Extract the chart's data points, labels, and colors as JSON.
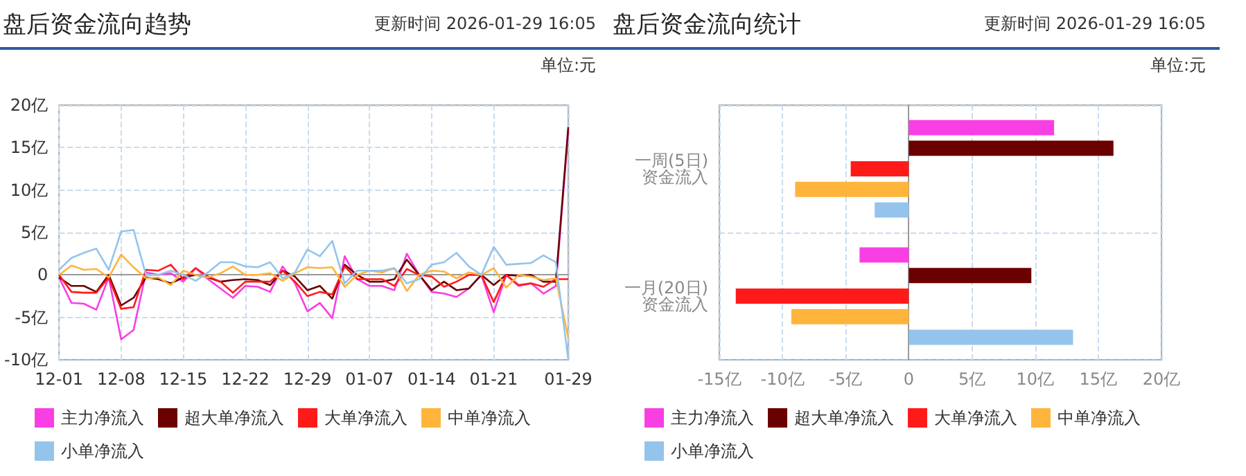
{
  "chart_data": [
    {
      "type": "line",
      "title": "盘后资金流向趋势",
      "subtitle": "更新时间 2026-01-29 16:05",
      "annotations": [
        "单位:元"
      ],
      "categories": [
        "12-01",
        null,
        null,
        null,
        null,
        "12-08",
        null,
        null,
        null,
        null,
        "12-15",
        null,
        null,
        null,
        null,
        "12-22",
        null,
        null,
        null,
        null,
        "12-29",
        null,
        null,
        null,
        null,
        "01-07",
        null,
        null,
        null,
        null,
        "01-14",
        null,
        null,
        null,
        null,
        "01-21",
        null,
        null,
        null,
        null,
        null,
        "01-29"
      ],
      "series": [
        {
          "name": "主力净流入",
          "color": "#f93ee4",
          "values": [
            -0.3,
            -3.3,
            -3.4,
            -4.1,
            -0.3,
            -7.6,
            -6.5,
            0.3,
            0.0,
            0.2,
            -0.8,
            0.8,
            -0.5,
            -1.6,
            -2.7,
            -1.3,
            -1.4,
            -2.0,
            1.0,
            -1.0,
            -4.3,
            -3.3,
            -5.1,
            2.2,
            -0.5,
            -1.3,
            -1.3,
            -1.8,
            2.5,
            0.0,
            -2.0,
            -2.2,
            -2.6,
            -1.6,
            0.0,
            -4.4,
            0.0,
            -1.3,
            -1.0,
            -2.2,
            -1.3,
            16.9
          ]
        },
        {
          "name": "超大单净流入",
          "color": "#6b0000",
          "values": [
            -0.3,
            -1.3,
            -1.3,
            -2.0,
            0.0,
            -3.6,
            -2.7,
            -0.3,
            -0.5,
            -1.0,
            -0.3,
            0.0,
            -0.3,
            -0.8,
            -0.6,
            -0.5,
            -0.6,
            -1.2,
            0.5,
            -0.2,
            -1.8,
            -1.3,
            -2.8,
            1.2,
            0.0,
            -0.8,
            -0.8,
            -0.5,
            1.8,
            0.0,
            -1.8,
            -0.8,
            -1.8,
            -1.6,
            0.0,
            -1.2,
            0.0,
            -0.1,
            0.0,
            -0.8,
            -0.8,
            17.4
          ]
        },
        {
          "name": "大单净流入",
          "color": "#ff1a1a",
          "values": [
            0.0,
            -2.0,
            -2.1,
            -2.1,
            -0.3,
            -4.0,
            -3.8,
            0.6,
            0.5,
            1.2,
            -0.5,
            0.8,
            -0.2,
            -0.8,
            -2.1,
            -0.8,
            -0.8,
            -0.8,
            0.5,
            -0.8,
            -2.5,
            -2.0,
            -2.3,
            1.0,
            -0.5,
            -0.5,
            -0.5,
            -1.3,
            0.7,
            0.0,
            -0.2,
            -1.4,
            -0.8,
            0.0,
            0.0,
            -3.2,
            0.0,
            -1.2,
            -1.0,
            -1.4,
            -0.5,
            -0.5
          ]
        },
        {
          "name": "中单净流入",
          "color": "#ffb43c",
          "values": [
            0.0,
            1.1,
            0.6,
            0.7,
            -0.3,
            2.4,
            0.9,
            -0.4,
            -0.3,
            -1.2,
            0.5,
            0.0,
            -0.3,
            0.2,
            1.0,
            0.0,
            0.0,
            0.2,
            -0.7,
            0.2,
            0.9,
            0.8,
            0.9,
            -1.4,
            0.0,
            0.5,
            0.3,
            0.8,
            -1.9,
            0.0,
            0.5,
            0.4,
            -0.4,
            0.3,
            0.0,
            0.8,
            -1.5,
            0.0,
            -0.2,
            -0.6,
            -0.4,
            -7.4
          ]
        },
        {
          "name": "小单净流入",
          "color": "#94c4ec",
          "values": [
            0.6,
            2.0,
            2.6,
            3.1,
            0.6,
            5.1,
            5.3,
            0.0,
            0.0,
            0.5,
            0.0,
            -0.7,
            0.3,
            1.5,
            1.5,
            1.0,
            0.9,
            1.5,
            -0.4,
            0.3,
            3.0,
            2.2,
            4.0,
            -1.0,
            0.5,
            0.5,
            0.5,
            0.8,
            -1.0,
            -0.5,
            1.2,
            1.5,
            2.6,
            1.0,
            0.0,
            3.3,
            1.2,
            1.3,
            1.4,
            2.3,
            1.5,
            -10.0
          ]
        }
      ],
      "ylim": [
        -10,
        20
      ],
      "yticks": [
        {
          "value": -10,
          "label": "-10亿"
        },
        {
          "value": -5,
          "label": "-5亿"
        },
        0,
        {
          "value": 5,
          "label": "5亿"
        },
        {
          "value": 10,
          "label": "10亿"
        },
        {
          "value": 15,
          "label": "15亿"
        },
        {
          "value": 20,
          "label": "20亿"
        }
      ],
      "grid": true,
      "legend": "bottom",
      "marker": "none"
    },
    {
      "type": "bar",
      "orientation": "horizontal",
      "title": "盘后资金流向统计",
      "subtitle": "更新时间 2026-01-29 16:05",
      "annotations": [
        "单位:元"
      ],
      "categories": [
        "一周(5日)\n资金流入",
        "一月(20日)\n资金流入"
      ],
      "series": [
        {
          "name": "主力净流入",
          "color": "#f93ee4",
          "values": [
            11.5,
            -3.9
          ]
        },
        {
          "name": "超大单净流入",
          "color": "#6b0000",
          "values": [
            16.2,
            9.7
          ]
        },
        {
          "name": "大单净流入",
          "color": "#ff1a1a",
          "values": [
            -4.6,
            -13.7
          ]
        },
        {
          "name": "中单净流入",
          "color": "#ffb43c",
          "values": [
            -9.0,
            -9.3
          ]
        },
        {
          "name": "小单净流入",
          "color": "#94c4ec",
          "values": [
            -2.7,
            13.0
          ]
        }
      ],
      "xlim": [
        -15,
        20
      ],
      "xticks": [
        {
          "value": -15,
          "label": "-15亿"
        },
        {
          "value": -10,
          "label": "-10亿"
        },
        {
          "value": -5,
          "label": "-5亿"
        },
        0,
        {
          "value": 5,
          "label": "5亿"
        },
        {
          "value": 10,
          "label": "10亿"
        },
        {
          "value": 15,
          "label": "15亿"
        },
        {
          "value": 20,
          "label": "20亿"
        }
      ],
      "grid": true,
      "legend": "bottom"
    }
  ]
}
